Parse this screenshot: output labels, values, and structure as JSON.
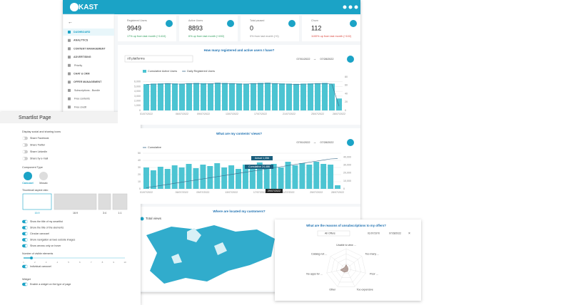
{
  "header": {
    "logo": "KAST"
  },
  "sidebar": {
    "items": [
      {
        "label": "DASHBOARD",
        "active": true
      },
      {
        "label": "ANALYTICS"
      },
      {
        "label": "CONTENT MANAGEMENT"
      },
      {
        "label": "ADVERTISING"
      },
      {
        "label": "Priority",
        "sub": true
      },
      {
        "label": "CHAT & CRM"
      },
      {
        "label": "OFFER MANAGEMENT"
      },
      {
        "label": "Subscriptions - Bundle",
        "sub": true
      },
      {
        "label": "Free contents",
        "sub": true
      },
      {
        "label": "Free credit",
        "sub": true
      }
    ]
  },
  "stats": [
    {
      "label": "Registered Users",
      "value": 9949,
      "change": "17% up from last month (+1410)",
      "color": "#2e9e5b"
    },
    {
      "label": "Active Users",
      "value": 8893,
      "change": "6% up from last month (+492)",
      "color": "#2e9e5b"
    },
    {
      "label": "Total paused",
      "value": 0,
      "change": "0% from last month (+0)",
      "color": "#888888"
    },
    {
      "label": "Churn",
      "value": 112,
      "change": "1100% up from last month (+102)",
      "color": "#d9453c"
    }
  ],
  "users_chart": {
    "type": "bar",
    "title": "How many registered and active users I have?",
    "filter": "All platforms",
    "date_from": "07/01/2022",
    "date_to": "07/28/2022",
    "categories": [
      "01/07/2022",
      null,
      null,
      null,
      null,
      "06/07/2022",
      null,
      null,
      "09/07/2022",
      null,
      null,
      null,
      "13/07/2022",
      null,
      null,
      null,
      "17/07/2022",
      null,
      null,
      null,
      "21/07/2022",
      null,
      null,
      null,
      "25/07/2022",
      null,
      null,
      "28/07/2022"
    ],
    "series": [
      {
        "name": "Cumulative Active Users",
        "color": "#4cc4d2",
        "values": [
          5500,
          5600,
          5650,
          5700,
          5650,
          5600,
          5700,
          5750,
          5700,
          5650,
          5800,
          5750,
          5700,
          5650,
          5600,
          5700,
          5750,
          5800,
          5700,
          5650,
          5600,
          5550,
          5600,
          5650,
          5700,
          5750,
          5600,
          2500
        ]
      },
      {
        "name": "Daily Registered Users",
        "color": "#3a6a8a",
        "type": "line",
        "axis": "y2",
        "values": [
          62,
          63,
          63,
          64,
          63,
          63,
          64,
          64,
          63,
          64,
          65,
          64,
          64,
          63,
          63,
          64,
          64,
          65,
          64,
          63,
          63,
          62,
          63,
          63,
          64,
          64,
          63,
          10
        ]
      }
    ],
    "ylim": [
      0,
      7000
    ],
    "yticks": [
      0,
      {
        "value": 1000,
        "label": "1,000"
      },
      {
        "value": 2000,
        "label": "2,000"
      },
      {
        "value": 3000,
        "label": "3,000"
      },
      {
        "value": 4000,
        "label": "4,000"
      },
      {
        "value": 5000,
        "label": "5,000"
      },
      {
        "value": 6000,
        "label": "6,000"
      }
    ],
    "y2lim": [
      0,
      80
    ],
    "y2ticks": [
      0,
      20,
      40,
      60,
      80
    ],
    "grid": true
  },
  "views_chart": {
    "type": "bar",
    "title": "What are my contents' views?",
    "date_from": "07/01/2022",
    "date_to": "07/28/2022",
    "categories": [
      "01/07/2022",
      null,
      null,
      null,
      null,
      "06/07/2022",
      null,
      null,
      "09/07/2022",
      null,
      null,
      null,
      "13/07/2022",
      null,
      null,
      null,
      "17/07/2022",
      null,
      null,
      null,
      "21/07/2022",
      null,
      null,
      null,
      "25/07/2022",
      null,
      null,
      "28/07/2022"
    ],
    "series": [
      {
        "color": "#4cc4d2",
        "values": [
          30,
          26,
          31,
          28,
          33,
          30,
          35,
          29,
          34,
          32,
          36,
          30,
          33,
          28,
          34,
          31,
          37,
          32,
          35,
          30,
          38,
          33,
          36,
          34,
          38,
          35,
          34,
          5
        ]
      },
      {
        "name": "Cumulative",
        "color": "#3a6a8a",
        "type": "line",
        "axis": "y2",
        "values": [
          1400,
          2800,
          4200,
          5600,
          7000,
          8400,
          9800,
          11200,
          12600,
          14000,
          15400,
          16800,
          18200,
          19600,
          21000,
          22400,
          23800,
          25200,
          26600,
          28000,
          29400,
          30800,
          32200,
          33600,
          35000,
          36400,
          37800,
          38200
        ]
      }
    ],
    "ylim": [
      0,
      50
    ],
    "yticks": [
      0,
      10,
      20,
      30,
      40,
      50
    ],
    "y2lim": [
      0,
      45000
    ],
    "y2ticks": [
      0,
      {
        "value": 10000,
        "label": "10,000"
      },
      {
        "value": 20000,
        "label": "20,000"
      },
      {
        "value": 30000,
        "label": "30,000"
      },
      {
        "value": 40000,
        "label": "40,000"
      }
    ],
    "grid": true,
    "tooltip": {
      "actual": "Actual 1,356",
      "cumulative": "Cumulative 24,486",
      "date": "29/07/2022"
    }
  },
  "map_card": {
    "title": "Where are located my customers?",
    "legend": "Total views"
  },
  "smartlist": {
    "title": "Smartlist Page",
    "sharing_label": "Display social and sharing icons",
    "sharing": [
      {
        "label": "Share Facebook",
        "on": false
      },
      {
        "label": "Share Twitter",
        "on": false
      },
      {
        "label": "Share LinkedIn",
        "on": false
      },
      {
        "label": "Share by e-mail",
        "on": false
      }
    ],
    "component_label": "Component Type",
    "components": [
      "Carousel",
      "Mosaic"
    ],
    "ratio_label": "Thumbnail aspect ratio",
    "ratios": [
      "16:9",
      "16:9",
      "3:4",
      "1:1"
    ],
    "options": [
      {
        "label": "Show the title of my smartlist",
        "on": true
      },
      {
        "label": "Show the title of the elements",
        "on": true
      },
      {
        "label": "Circular carousel",
        "on": true
      },
      {
        "label": "Show navigation arrows outside images",
        "on": true
      },
      {
        "label": "Show arrows only on hover",
        "on": true
      }
    ],
    "slider_label": "Number of visible elements",
    "slider_ticks": [
      1,
      2,
      3,
      4,
      5,
      6,
      7,
      8,
      9,
      10
    ],
    "individual": {
      "label": "Individual carousel",
      "on": true
    },
    "widget_label": "Widget",
    "widget": {
      "label": "Enable a widget on the type of page",
      "on": true
    }
  },
  "reasons_chart": {
    "type": "radar",
    "title": "What are the reasons of unsubscriptions to my offers?",
    "filter": "All Offers",
    "date_from": "01/07/1970",
    "date_to": "07/28/2022",
    "categories": [
      "Unable to view ...",
      "Too many ...",
      "Poor ...",
      "Too expensive",
      "Other",
      "No apps for ...",
      "Catalog not ..."
    ],
    "values": [
      2,
      1,
      1,
      1.5,
      2,
      3,
      1
    ],
    "color": "#8a6d63",
    "ylim": [
      0,
      10
    ]
  }
}
